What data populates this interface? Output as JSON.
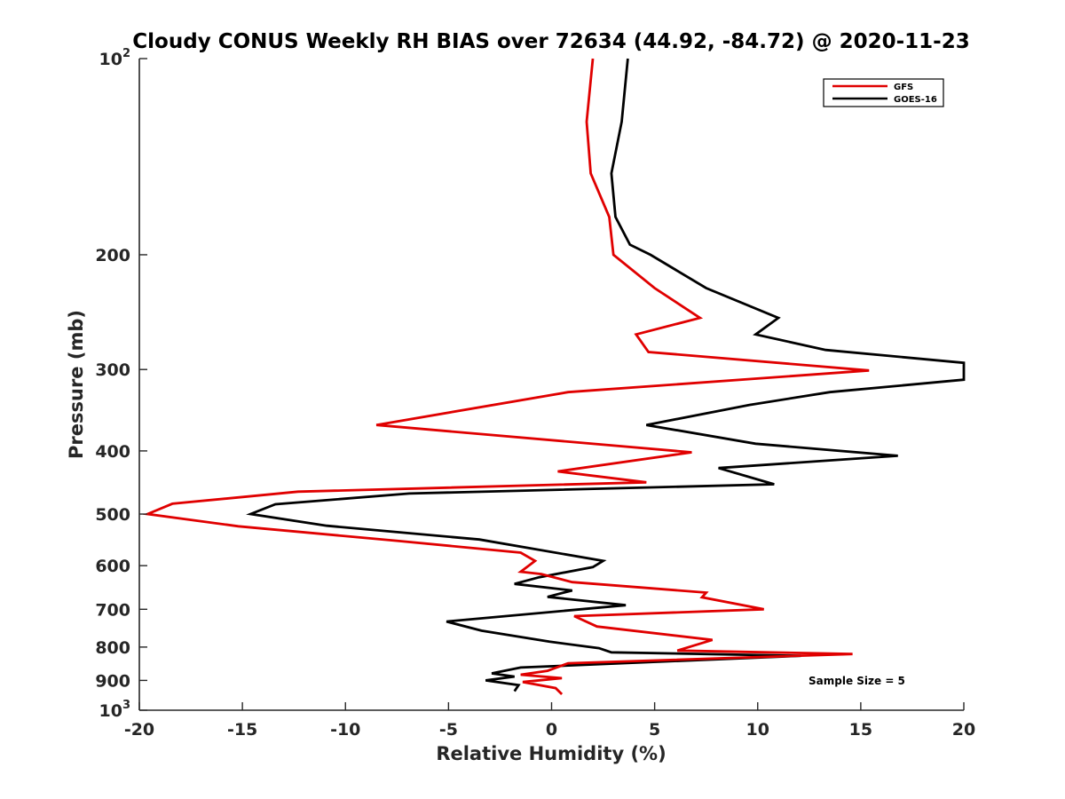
{
  "chart_data": {
    "type": "line",
    "title": "Cloudy CONUS Weekly RH BIAS over 72634 (44.92, -84.72) @ 2020-11-23",
    "xlabel": "Relative Humidity (%)",
    "ylabel": "Pressure (mb)",
    "xlim": [
      -20,
      20
    ],
    "ylim": [
      100,
      1000
    ],
    "y_scale": "log",
    "y_reversed": true,
    "x_ticks": [
      "-20",
      "-15",
      "-10",
      "-5",
      "0",
      "5",
      "10",
      "15",
      "20"
    ],
    "y_ticks": [
      {
        "value": 100,
        "base": "10",
        "exp": "2"
      },
      {
        "value": 200,
        "label": "200"
      },
      {
        "value": 300,
        "label": "300"
      },
      {
        "value": 400,
        "label": "400"
      },
      {
        "value": 500,
        "label": "500"
      },
      {
        "value": 600,
        "label": "600"
      },
      {
        "value": 700,
        "label": "700"
      },
      {
        "value": 800,
        "label": "800"
      },
      {
        "value": 900,
        "label": "900"
      },
      {
        "value": 1000,
        "base": "10",
        "exp": "3"
      }
    ],
    "grid": false,
    "legend_position": "top-right",
    "series": [
      {
        "name": "GFS",
        "color": "#e00000",
        "points": [
          [
            2.0,
            100
          ],
          [
            1.7,
            125
          ],
          [
            1.9,
            150
          ],
          [
            2.8,
            175
          ],
          [
            3.0,
            200
          ],
          [
            5.0,
            225
          ],
          [
            7.2,
            250
          ],
          [
            4.1,
            265
          ],
          [
            4.7,
            282
          ],
          [
            15.4,
            301
          ],
          [
            0.8,
            325
          ],
          [
            -8.5,
            365
          ],
          [
            6.8,
            402
          ],
          [
            0.3,
            430
          ],
          [
            4.6,
            447
          ],
          [
            -12.3,
            462
          ],
          [
            -18.4,
            482
          ],
          [
            -19.6,
            500
          ],
          [
            -15.2,
            522
          ],
          [
            -7.4,
            550
          ],
          [
            -1.5,
            573
          ],
          [
            -0.8,
            590
          ],
          [
            -1.5,
            613
          ],
          [
            -0.5,
            618
          ],
          [
            1.0,
            636
          ],
          [
            7.5,
            660
          ],
          [
            7.3,
            671
          ],
          [
            10.3,
            700
          ],
          [
            1.1,
            717
          ],
          [
            2.2,
            744
          ],
          [
            7.8,
            780
          ],
          [
            6.1,
            810
          ],
          [
            14.6,
            820
          ],
          [
            0.8,
            847
          ],
          [
            -0.2,
            870
          ],
          [
            -1.5,
            882
          ],
          [
            0.5,
            893
          ],
          [
            -1.4,
            905
          ],
          [
            0.2,
            925
          ],
          [
            0.5,
            945
          ]
        ]
      },
      {
        "name": "GOES-16",
        "color": "#000000",
        "points": [
          [
            3.7,
            100
          ],
          [
            3.4,
            125
          ],
          [
            2.9,
            150
          ],
          [
            3.1,
            175
          ],
          [
            3.8,
            193
          ],
          [
            4.8,
            200
          ],
          [
            7.5,
            225
          ],
          [
            11.0,
            250
          ],
          [
            9.9,
            265
          ],
          [
            13.3,
            280
          ],
          [
            20.0,
            293
          ],
          [
            20.0,
            311
          ],
          [
            13.5,
            325
          ],
          [
            9.6,
            340
          ],
          [
            4.6,
            365
          ],
          [
            9.9,
            390
          ],
          [
            16.8,
            407
          ],
          [
            8.1,
            425
          ],
          [
            10.8,
            450
          ],
          [
            -6.9,
            465
          ],
          [
            -13.4,
            483
          ],
          [
            -14.6,
            500
          ],
          [
            -10.9,
            521
          ],
          [
            -3.5,
            547
          ],
          [
            2.5,
            590
          ],
          [
            2.0,
            603
          ],
          [
            -0.6,
            625
          ],
          [
            -1.8,
            640
          ],
          [
            1.0,
            655
          ],
          [
            -0.2,
            670
          ],
          [
            3.6,
            690
          ],
          [
            -5.1,
            731
          ],
          [
            -3.4,
            755
          ],
          [
            -0.1,
            785
          ],
          [
            2.3,
            803
          ],
          [
            2.9,
            815
          ],
          [
            12.1,
            825
          ],
          [
            -1.5,
            860
          ],
          [
            -2.9,
            878
          ],
          [
            -1.8,
            888
          ],
          [
            -3.2,
            900
          ],
          [
            -1.6,
            915
          ],
          [
            -1.8,
            935
          ]
        ]
      }
    ],
    "annotation": "Sample Size = 5"
  }
}
